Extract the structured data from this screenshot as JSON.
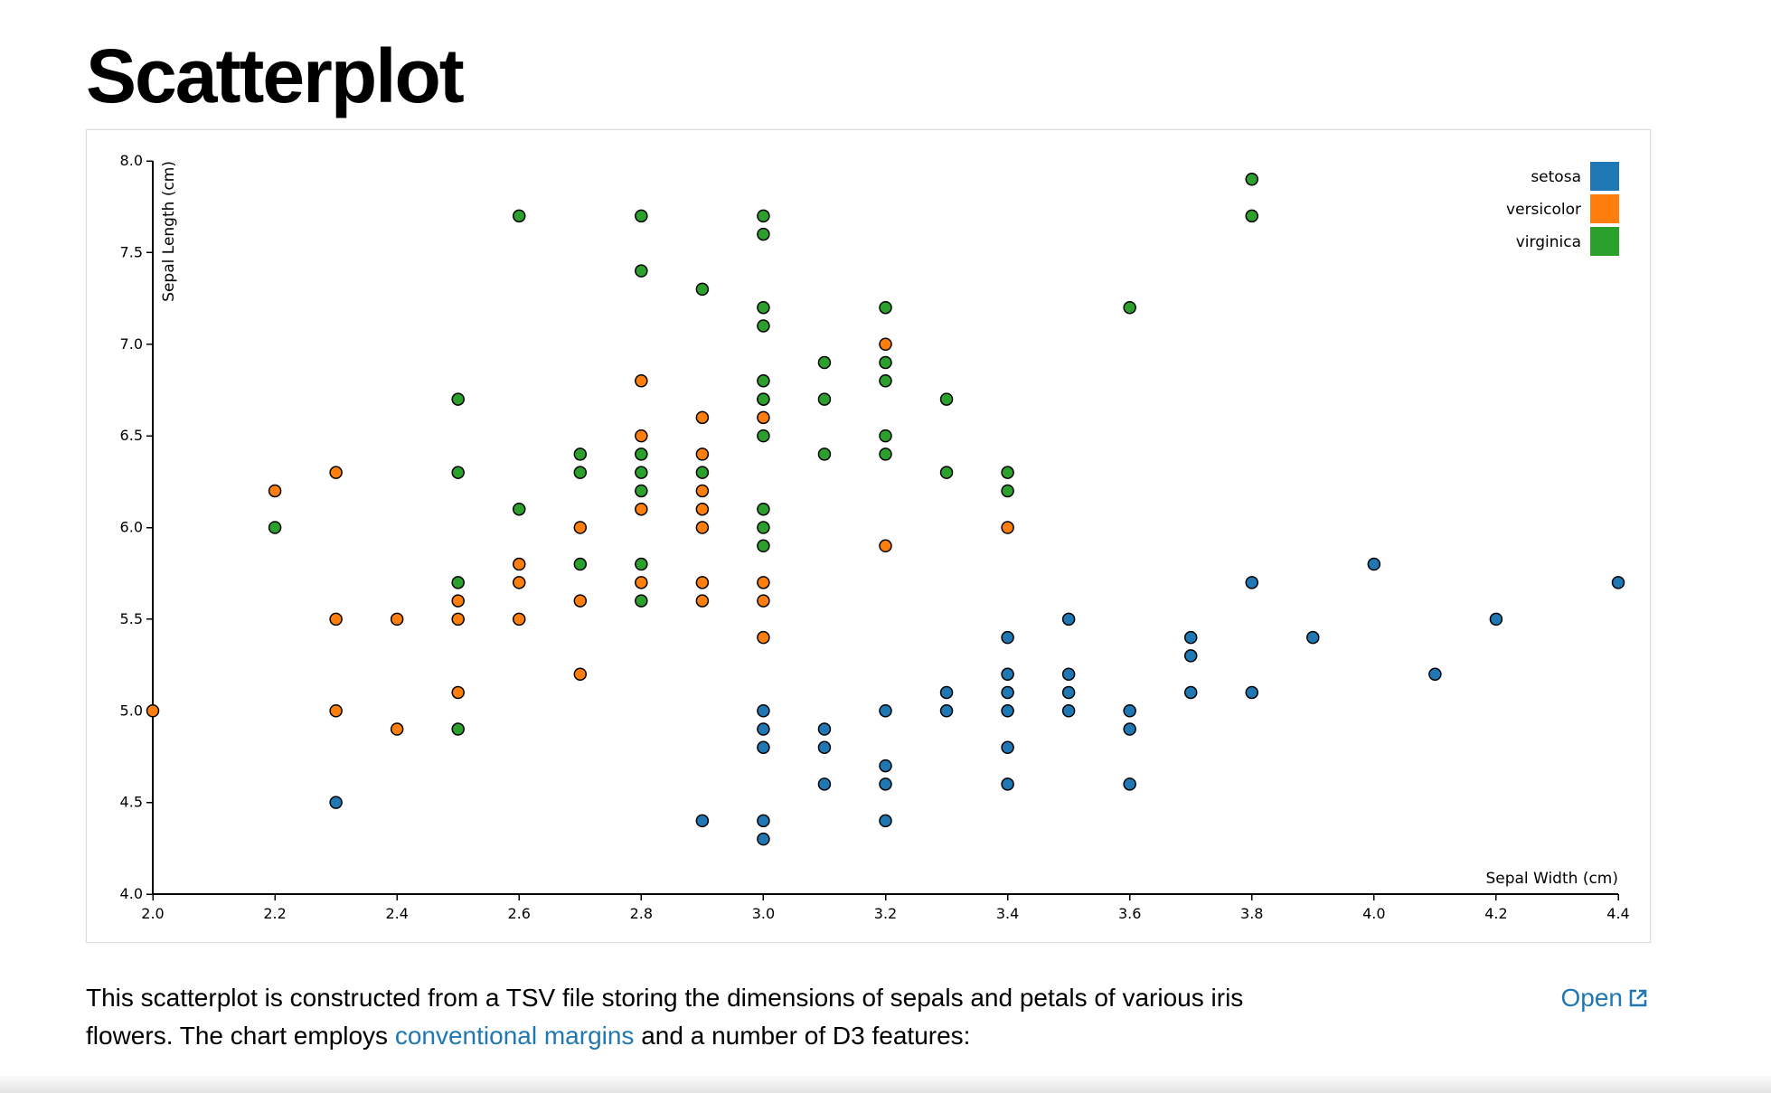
{
  "page": {
    "title": "Scatterplot",
    "description_part1": "This scatterplot is constructed from a TSV file storing the dimensions of sepals and petals of various iris flowers. The chart employs ",
    "description_link": "conventional margins",
    "description_part2": " and a number of D3 features:",
    "open_label": "Open"
  },
  "colors": {
    "link": "#1f77b4",
    "setosa": "#1f77b4",
    "versicolor": "#ff7f0e",
    "virginica": "#2ca02c"
  },
  "chart_data": {
    "type": "scatter",
    "title": "",
    "xlabel": "Sepal Width (cm)",
    "ylabel": "Sepal Length (cm)",
    "xlim": [
      2.0,
      4.4
    ],
    "ylim": [
      4.0,
      8.0
    ],
    "xticks": [
      "2.0",
      "2.2",
      "2.4",
      "2.6",
      "2.8",
      "3.0",
      "3.2",
      "3.4",
      "3.6",
      "3.8",
      "4.0",
      "4.2",
      "4.4"
    ],
    "yticks": [
      "4.0",
      "4.5",
      "5.0",
      "5.5",
      "6.0",
      "6.5",
      "7.0",
      "7.5",
      "8.0"
    ],
    "grid": false,
    "legend_position": "top-right",
    "series": [
      {
        "name": "setosa",
        "color": "#1f77b4",
        "points": [
          [
            2.3,
            4.5
          ],
          [
            2.9,
            4.4
          ],
          [
            3.0,
            4.4
          ],
          [
            3.0,
            4.3
          ],
          [
            3.0,
            4.8
          ],
          [
            3.0,
            4.9
          ],
          [
            3.0,
            5.0
          ],
          [
            3.1,
            4.6
          ],
          [
            3.1,
            4.8
          ],
          [
            3.1,
            4.9
          ],
          [
            3.2,
            4.4
          ],
          [
            3.2,
            4.6
          ],
          [
            3.2,
            4.7
          ],
          [
            3.2,
            5.0
          ],
          [
            3.3,
            5.0
          ],
          [
            3.3,
            5.1
          ],
          [
            3.4,
            4.6
          ],
          [
            3.4,
            4.8
          ],
          [
            3.4,
            5.0
          ],
          [
            3.4,
            5.1
          ],
          [
            3.4,
            5.2
          ],
          [
            3.4,
            5.4
          ],
          [
            3.5,
            5.0
          ],
          [
            3.5,
            5.1
          ],
          [
            3.5,
            5.2
          ],
          [
            3.5,
            5.5
          ],
          [
            3.6,
            4.6
          ],
          [
            3.6,
            4.9
          ],
          [
            3.6,
            5.0
          ],
          [
            3.7,
            5.1
          ],
          [
            3.7,
            5.3
          ],
          [
            3.7,
            5.4
          ],
          [
            3.8,
            5.1
          ],
          [
            3.8,
            5.7
          ],
          [
            3.9,
            5.4
          ],
          [
            4.0,
            5.8
          ],
          [
            4.1,
            5.2
          ],
          [
            4.2,
            5.5
          ],
          [
            4.4,
            5.7
          ]
        ]
      },
      {
        "name": "versicolor",
        "color": "#ff7f0e",
        "points": [
          [
            2.0,
            5.0
          ],
          [
            2.2,
            6.2
          ],
          [
            2.3,
            6.3
          ],
          [
            2.3,
            5.5
          ],
          [
            2.3,
            5.0
          ],
          [
            2.4,
            5.5
          ],
          [
            2.4,
            4.9
          ],
          [
            2.5,
            5.6
          ],
          [
            2.5,
            5.5
          ],
          [
            2.5,
            5.1
          ],
          [
            2.6,
            5.8
          ],
          [
            2.6,
            5.7
          ],
          [
            2.6,
            5.5
          ],
          [
            2.7,
            6.0
          ],
          [
            2.7,
            5.6
          ],
          [
            2.7,
            5.2
          ],
          [
            2.8,
            6.8
          ],
          [
            2.8,
            6.5
          ],
          [
            2.8,
            6.1
          ],
          [
            2.8,
            5.7
          ],
          [
            2.9,
            6.6
          ],
          [
            2.9,
            6.4
          ],
          [
            2.9,
            6.2
          ],
          [
            2.9,
            6.1
          ],
          [
            2.9,
            6.0
          ],
          [
            2.9,
            5.7
          ],
          [
            2.9,
            5.6
          ],
          [
            3.0,
            6.7
          ],
          [
            3.0,
            6.6
          ],
          [
            3.0,
            5.7
          ],
          [
            3.0,
            5.6
          ],
          [
            3.0,
            5.4
          ],
          [
            3.2,
            7.0
          ],
          [
            3.2,
            5.9
          ],
          [
            3.4,
            6.0
          ]
        ]
      },
      {
        "name": "virginica",
        "color": "#2ca02c",
        "points": [
          [
            2.2,
            6.0
          ],
          [
            2.5,
            6.7
          ],
          [
            2.5,
            6.3
          ],
          [
            2.5,
            5.7
          ],
          [
            2.5,
            4.9
          ],
          [
            2.6,
            7.7
          ],
          [
            2.6,
            6.1
          ],
          [
            2.7,
            6.4
          ],
          [
            2.7,
            6.3
          ],
          [
            2.7,
            5.8
          ],
          [
            2.8,
            7.7
          ],
          [
            2.8,
            7.4
          ],
          [
            2.8,
            6.4
          ],
          [
            2.8,
            6.3
          ],
          [
            2.8,
            6.2
          ],
          [
            2.8,
            5.8
          ],
          [
            2.8,
            5.6
          ],
          [
            2.9,
            7.3
          ],
          [
            2.9,
            6.3
          ],
          [
            3.0,
            7.7
          ],
          [
            3.0,
            7.6
          ],
          [
            3.0,
            7.2
          ],
          [
            3.0,
            7.1
          ],
          [
            3.0,
            6.8
          ],
          [
            3.0,
            6.7
          ],
          [
            3.0,
            6.5
          ],
          [
            3.0,
            6.1
          ],
          [
            3.0,
            6.0
          ],
          [
            3.0,
            5.9
          ],
          [
            3.1,
            6.9
          ],
          [
            3.1,
            6.7
          ],
          [
            3.1,
            6.4
          ],
          [
            3.2,
            7.2
          ],
          [
            3.2,
            6.9
          ],
          [
            3.2,
            6.8
          ],
          [
            3.2,
            6.5
          ],
          [
            3.2,
            6.4
          ],
          [
            3.3,
            6.7
          ],
          [
            3.3,
            6.3
          ],
          [
            3.4,
            6.3
          ],
          [
            3.4,
            6.2
          ],
          [
            3.6,
            7.2
          ],
          [
            3.8,
            7.9
          ],
          [
            3.8,
            7.7
          ]
        ]
      }
    ]
  }
}
